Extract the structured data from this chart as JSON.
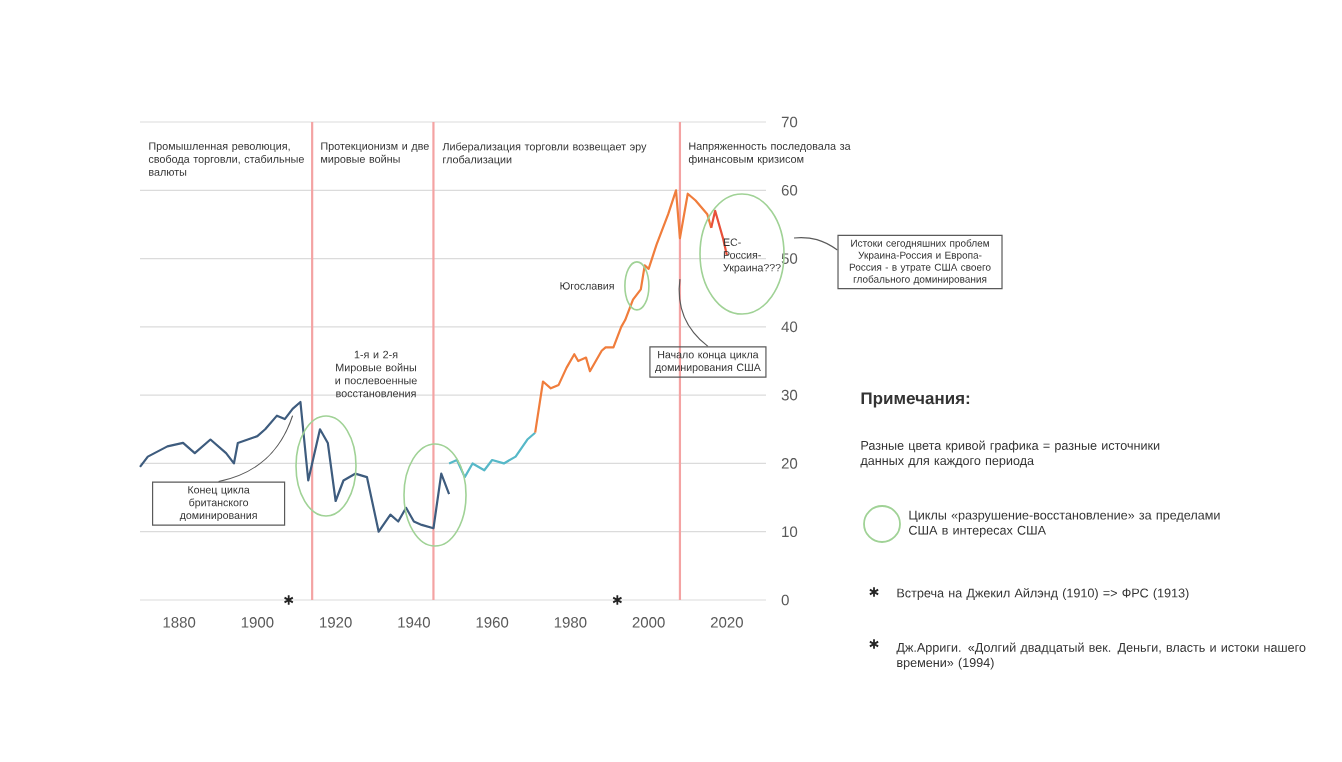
{
  "chart_data": {
    "type": "line",
    "xlim": [
      1870,
      2030
    ],
    "ylim": [
      0,
      70
    ],
    "xticks": [
      1880,
      1900,
      1920,
      1940,
      1960,
      1980,
      2000,
      2020
    ],
    "yticks": [
      0,
      10,
      20,
      30,
      40,
      50,
      60,
      70
    ],
    "grid": "y",
    "series": [
      {
        "color": "#3e5c7e",
        "x": [
          1870,
          1872,
          1877,
          1881,
          1884,
          1888,
          1892,
          1894,
          1895,
          1900,
          1902,
          1905,
          1907,
          1909,
          1911,
          1913,
          1916,
          1918,
          1920,
          1922,
          1925,
          1928,
          1931,
          1934,
          1936,
          1938,
          1940,
          1942,
          1945,
          1947,
          1949
        ],
        "values": [
          19.5,
          21,
          22.5,
          23,
          21.5,
          23.5,
          21.5,
          20,
          23,
          24,
          25,
          27,
          26.5,
          28,
          29,
          17.5,
          25,
          23,
          14.5,
          17.5,
          18.5,
          18,
          10,
          12.5,
          11.5,
          13.5,
          11.5,
          11,
          10.5,
          18.5,
          15.5
        ]
      },
      {
        "color": "#56b8c8",
        "x": [
          1949,
          1951,
          1953,
          1955,
          1958,
          1960,
          1963,
          1966,
          1969,
          1971
        ],
        "values": [
          20,
          20.5,
          18,
          20,
          19,
          20.5,
          20,
          21,
          23.5,
          24.5
        ]
      },
      {
        "color": "#f07d3c",
        "x": [
          1971,
          1973,
          1975,
          1977,
          1979,
          1981,
          1982,
          1984,
          1985,
          1988,
          1989,
          1991,
          1993,
          1994,
          1996,
          1998,
          1999,
          2000,
          2002,
          2005,
          2007,
          2008,
          2010,
          2012,
          2015,
          2016
        ],
        "values": [
          24.5,
          32,
          31,
          31.5,
          34,
          36,
          35,
          35.5,
          33.5,
          36.5,
          37,
          37,
          40,
          41,
          44,
          45.5,
          49,
          48.5,
          52,
          56.5,
          60,
          53,
          59.5,
          58.5,
          56.5,
          54.5
        ]
      },
      {
        "color": "#e8503a",
        "x": [
          2016,
          2017,
          2019,
          2020
        ],
        "values": [
          54.5,
          57,
          53,
          50.5
        ]
      },
      {
        "type": "scatter",
        "marker": "cross",
        "color": "#222222",
        "x": [
          1908,
          1992
        ],
        "values": [
          0,
          0
        ]
      }
    ],
    "ref_lines": [
      {
        "axis": "x",
        "value": 1914,
        "color": "#f4a3a3"
      },
      {
        "axis": "x",
        "value": 1945,
        "color": "#f4a3a3"
      },
      {
        "axis": "x",
        "value": 2008,
        "color": "#f4a3a3"
      }
    ],
    "annotations": [
      "Промышленная революция, свобода торговли, стабильные валюты",
      "Протекционизм и две мировые войны",
      "Либерализация торговли возвещает эру глобализации",
      "Напряженность последовала за финансовым кризисом",
      "1-я и 2-я Мировые войны и послевоенные восстановления",
      {
        "text": "Конец цикла британского доминирования",
        "x": 1909,
        "y": 27
      },
      {
        "text": "Югославия",
        "x": 1997,
        "y": 46
      },
      {
        "text": "Начало конца цикла доминирования США",
        "x": 2008,
        "y": 47
      },
      "ЕС-Россия-Украина???",
      "Истоки сегодняшних проблем Украина-Россия и Европа-Россия - в утрате США своего глобального доминирования",
      "Примечания:",
      "Разные цвета кривой графика = разные источники данных для каждого периода",
      "Циклы «разрушение-восстановление» за пределами США в интересах США",
      "Встреча на Джекил Айлэнд (1910) => ФРС (1913)",
      "Дж.Арриги. «Долгий двадцатый век. Деньги, власть и истоки нашего времени» (1994)"
    ]
  }
}
